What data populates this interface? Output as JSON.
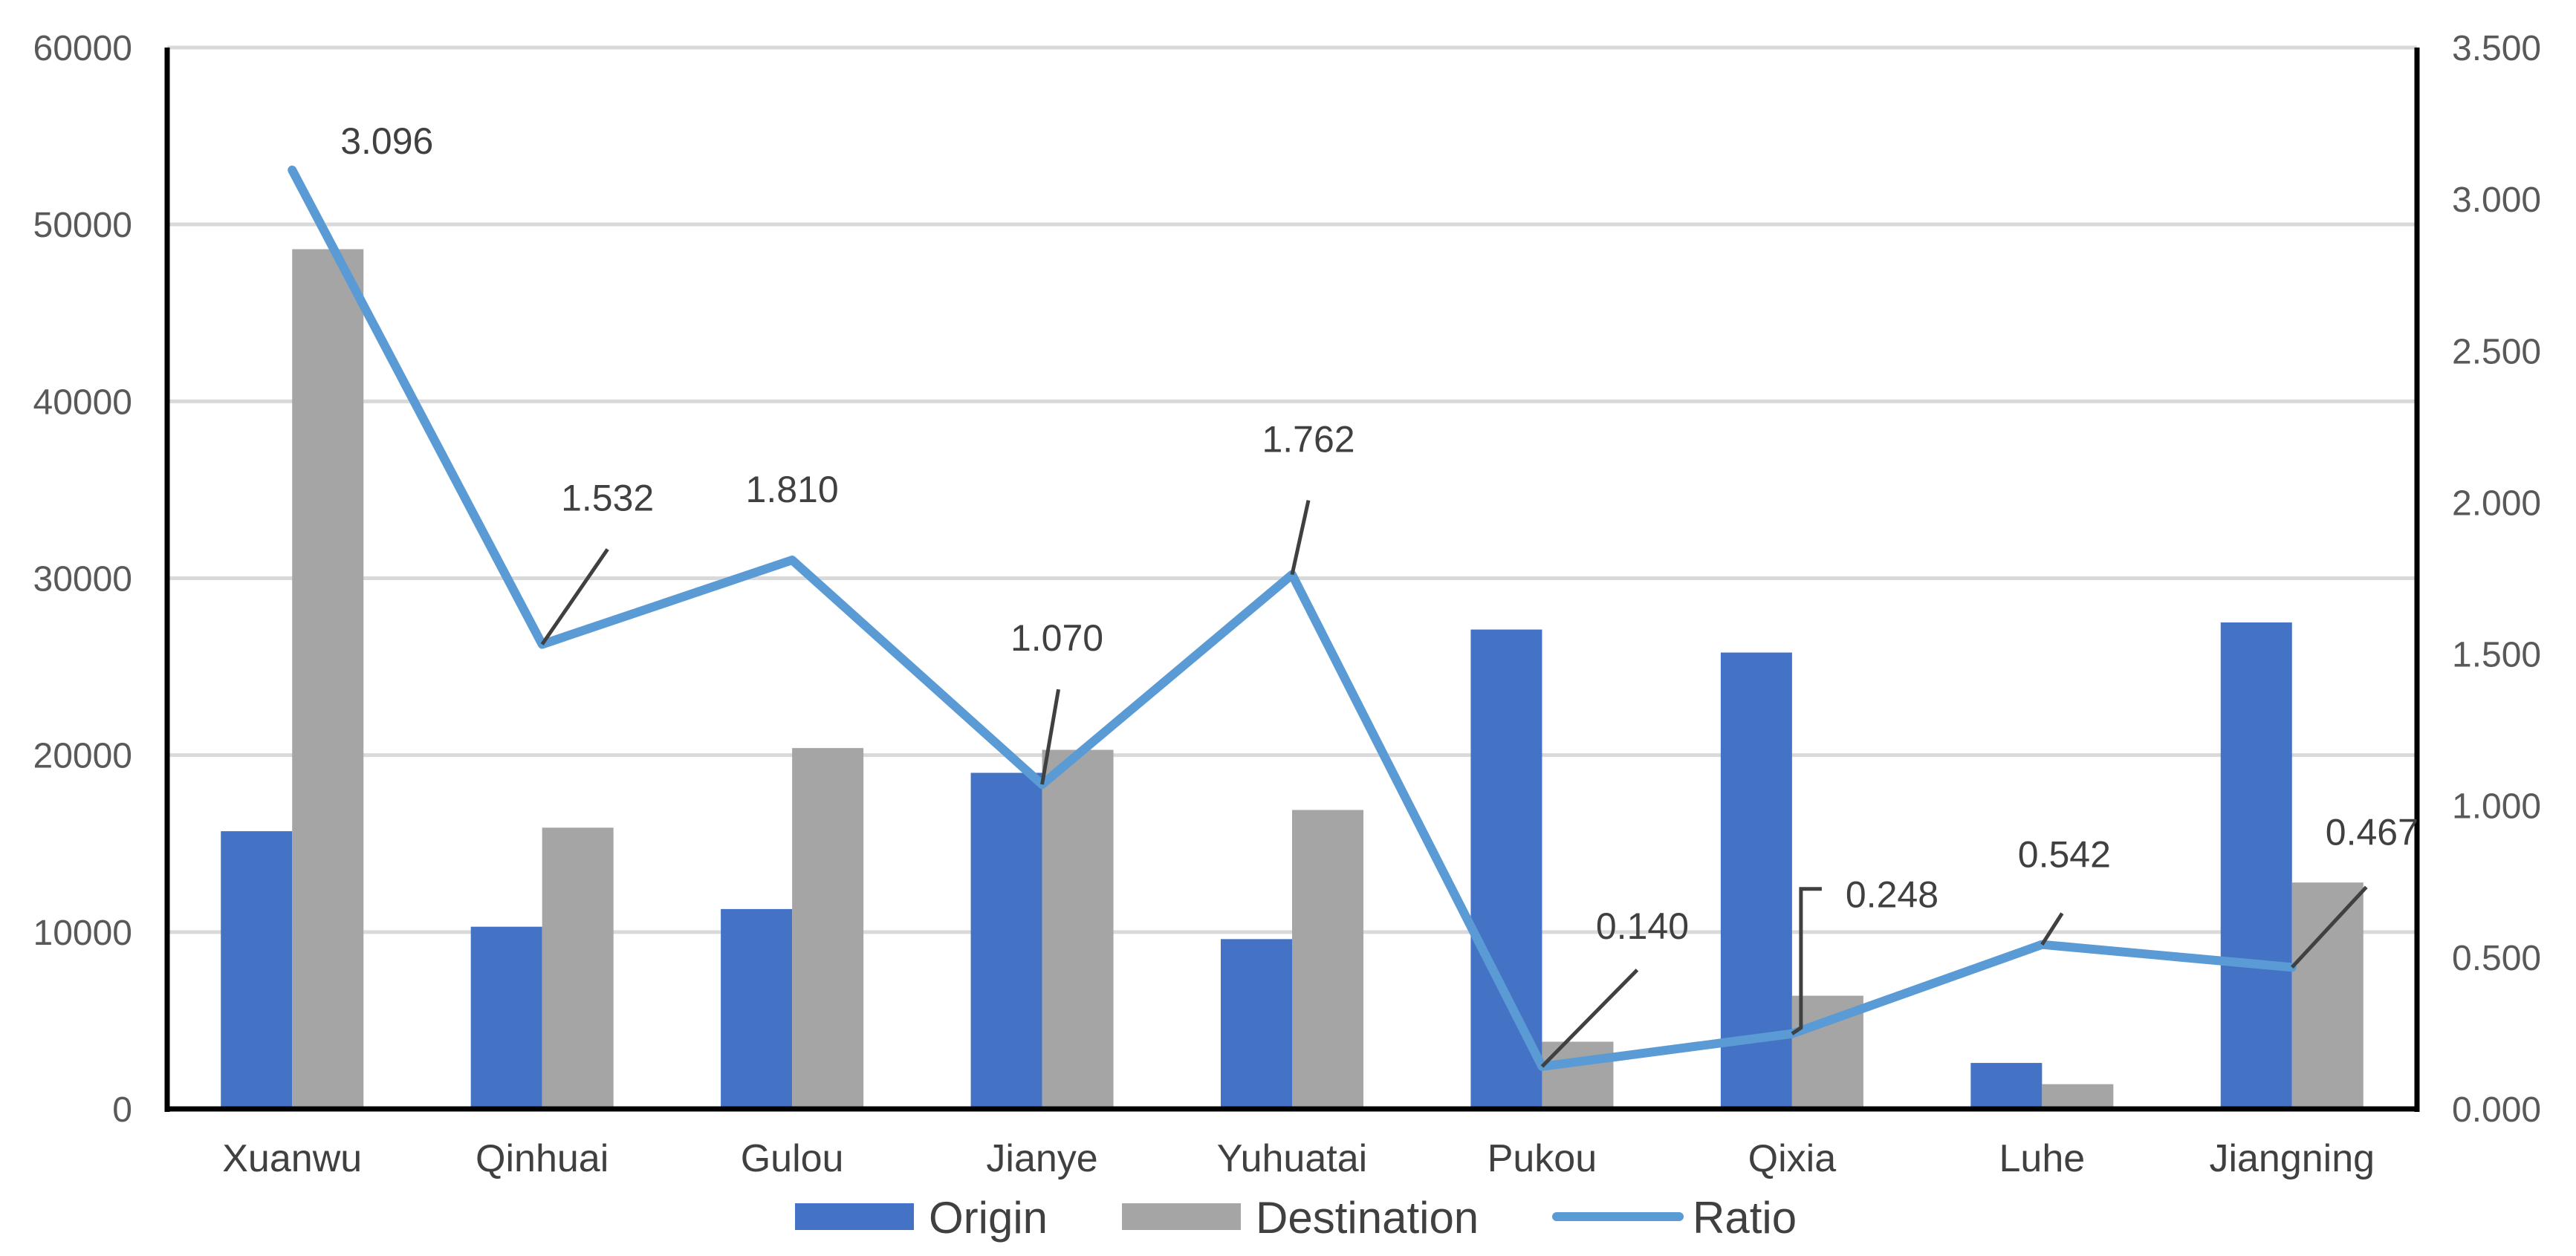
{
  "chart_data": {
    "type": "bar+line",
    "categories": [
      "Xuanwu",
      "Qinhuai",
      "Gulou",
      "Jianye",
      "Yuhuatai",
      "Pukou",
      "Qixia",
      "Luhe",
      "Jiangning"
    ],
    "series": [
      {
        "name": "Origin",
        "type": "bar",
        "axis": "left",
        "color": "#4472C4",
        "values": [
          15700,
          10300,
          11300,
          19000,
          9600,
          27100,
          25800,
          2600,
          27500
        ]
      },
      {
        "name": "Destination",
        "type": "bar",
        "axis": "left",
        "color": "#A5A5A5",
        "values": [
          48600,
          15900,
          20400,
          20300,
          16900,
          3800,
          6400,
          1400,
          12800
        ]
      },
      {
        "name": "Ratio",
        "type": "line",
        "axis": "right",
        "color": "#5B9BD5",
        "values": [
          3.096,
          1.532,
          1.81,
          1.07,
          1.762,
          0.14,
          0.248,
          0.542,
          0.467
        ],
        "labels": [
          "3.096",
          "1.532",
          "1.810",
          "1.070",
          "1.762",
          "0.140",
          "0.248",
          "0.542",
          "0.467"
        ]
      }
    ],
    "left_axis": {
      "min": 0,
      "max": 60000,
      "step": 10000,
      "ticks": [
        "0",
        "10000",
        "20000",
        "30000",
        "40000",
        "50000",
        "60000"
      ]
    },
    "right_axis": {
      "min": 0,
      "max": 3.5,
      "step": 0.5,
      "ticks": [
        "0.000",
        "0.500",
        "1.000",
        "1.500",
        "2.000",
        "2.500",
        "3.000",
        "3.500"
      ]
    },
    "title": "",
    "xlabel": "",
    "ylabel": "",
    "grid": true,
    "legend_position": "bottom"
  }
}
